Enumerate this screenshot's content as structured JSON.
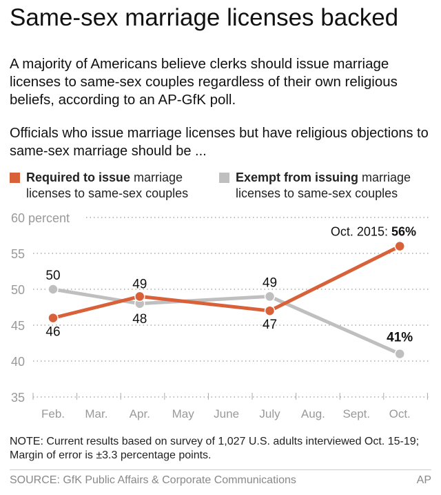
{
  "title": "Same-sex marriage licenses backed",
  "subtitle": "A majority of Americans believe clerks should issue marriage licenses to same-sex couples regardless of their own religious beliefs, according to an AP-GfK poll.",
  "question": "Officials who issue marriage licenses but have religious objections to same-sex marriage should be ...",
  "legend": [
    {
      "bold": "Required to issue",
      "rest": " marriage",
      "line2": "licenses to same-sex couples",
      "color": "#d9613a"
    },
    {
      "bold": "Exempt from issuing",
      "rest": " marriage",
      "line2": "licenses to same-sex couples",
      "color": "#bfbfbf"
    }
  ],
  "note": "NOTE: Current results based on survey of 1,027 U.S. adults interviewed Oct. 15-19; Margin of error is ±3.3 percentage points.",
  "source": "SOURCE: GfK Public Affairs & Corporate Communications",
  "credit": "AP",
  "chart_data": {
    "type": "line",
    "categories": [
      "Feb.",
      "Mar.",
      "Apr.",
      "May",
      "June",
      "July",
      "Aug.",
      "Sept.",
      "Oct."
    ],
    "ylim": [
      35,
      60
    ],
    "yticks": [
      "35",
      "40",
      "45",
      "50",
      "55",
      "60 percent"
    ],
    "grid": true,
    "annotation": {
      "prefix": "Oct. 2015: ",
      "value": "56%"
    },
    "series": [
      {
        "name": "Required to issue marriage licenses to same-sex couples",
        "color": "#d9613a",
        "points": [
          [
            "Feb.",
            46
          ],
          [
            "Apr.",
            49
          ],
          [
            "July",
            47
          ],
          [
            "Oct.",
            56
          ]
        ],
        "labels": [
          "46",
          "49",
          "47",
          "56%"
        ]
      },
      {
        "name": "Exempt from issuing marriage licenses to same-sex couples",
        "color": "#bfbfbf",
        "points": [
          [
            "Feb.",
            50
          ],
          [
            "Apr.",
            48
          ],
          [
            "July",
            49
          ],
          [
            "Oct.",
            41
          ]
        ],
        "labels": [
          "50",
          "48",
          "49",
          "41%"
        ]
      }
    ]
  }
}
